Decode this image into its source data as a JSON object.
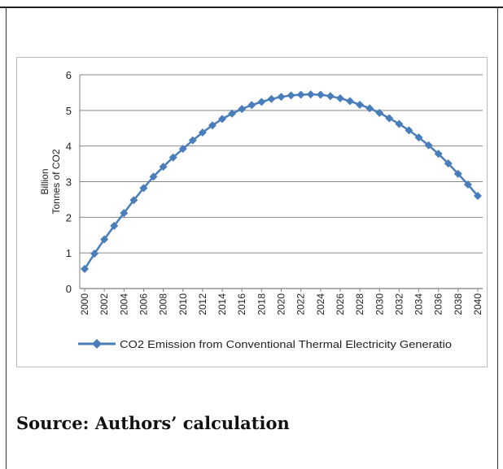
{
  "chart_data": {
    "type": "line",
    "title": "",
    "xlabel": "",
    "ylabel": "Billion Tonnes of CO2",
    "ylabel_lines": [
      "Billion",
      "Tonnes of CO2"
    ],
    "ylim": [
      0,
      6
    ],
    "yticks": [
      0,
      1,
      2,
      3,
      4,
      5,
      6
    ],
    "x_tick_labels": [
      "2000",
      "2002",
      "2004",
      "2006",
      "2008",
      "2010",
      "2012",
      "2014",
      "2016",
      "2018",
      "2020",
      "2022",
      "2024",
      "2026",
      "2028",
      "2030",
      "2032",
      "2034",
      "2036",
      "2038",
      "2040"
    ],
    "grid": true,
    "legend_position": "bottom",
    "series": [
      {
        "name": "CO2 Emission from Conventional Thermal Electricity Generatio",
        "color": "#4a7ebb",
        "marker": "diamond",
        "x": [
          2000,
          2001,
          2002,
          2003,
          2004,
          2005,
          2006,
          2007,
          2008,
          2009,
          2010,
          2011,
          2012,
          2013,
          2014,
          2015,
          2016,
          2017,
          2018,
          2019,
          2020,
          2021,
          2022,
          2023,
          2024,
          2025,
          2026,
          2027,
          2028,
          2029,
          2030,
          2031,
          2032,
          2033,
          2034,
          2035,
          2036,
          2037,
          2038,
          2039,
          2040
        ],
        "values": [
          0.55,
          0.98,
          1.38,
          1.76,
          2.12,
          2.48,
          2.82,
          3.14,
          3.42,
          3.68,
          3.92,
          4.16,
          4.38,
          4.58,
          4.76,
          4.91,
          5.04,
          5.15,
          5.24,
          5.32,
          5.38,
          5.42,
          5.44,
          5.45,
          5.44,
          5.4,
          5.34,
          5.26,
          5.16,
          5.06,
          4.93,
          4.78,
          4.62,
          4.44,
          4.24,
          4.02,
          3.78,
          3.51,
          3.22,
          2.92,
          2.6
        ]
      }
    ]
  },
  "source": "Source: Authors’ calculation"
}
